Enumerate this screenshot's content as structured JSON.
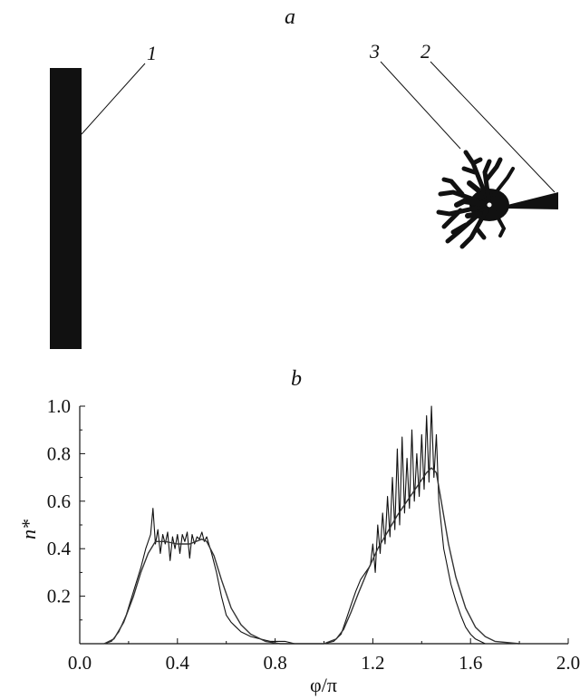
{
  "panel_a": {
    "label": "a",
    "labels": [
      "1",
      "2",
      "3"
    ]
  },
  "chart_data": {
    "type": "line",
    "title": "b",
    "xlabel": "φ/π",
    "ylabel": "n*",
    "xlim": [
      0.0,
      2.0
    ],
    "ylim": [
      0.0,
      1.0
    ],
    "x_ticks": [
      "0.0",
      "0.4",
      "0.8",
      "1.2",
      "1.6",
      "2.0"
    ],
    "y_ticks": [
      "0.2",
      "0.4",
      "0.6",
      "0.8",
      "1.0"
    ],
    "grid": false,
    "series": [
      {
        "name": "",
        "style": "noisy",
        "x": [
          0.0,
          0.1,
          0.13,
          0.16,
          0.19,
          0.22,
          0.25,
          0.27,
          0.29,
          0.3,
          0.31,
          0.32,
          0.33,
          0.34,
          0.35,
          0.36,
          0.37,
          0.38,
          0.39,
          0.4,
          0.41,
          0.42,
          0.43,
          0.44,
          0.45,
          0.46,
          0.47,
          0.48,
          0.49,
          0.5,
          0.51,
          0.52,
          0.54,
          0.56,
          0.58,
          0.6,
          0.62,
          0.64,
          0.66,
          0.68,
          0.7,
          0.72,
          0.74,
          0.76,
          0.78,
          0.8,
          0.84,
          0.88,
          0.92,
          0.96,
          1.0,
          1.04,
          1.07,
          1.09,
          1.11,
          1.13,
          1.15,
          1.17,
          1.19,
          1.2,
          1.21,
          1.22,
          1.23,
          1.24,
          1.25,
          1.26,
          1.27,
          1.28,
          1.29,
          1.3,
          1.31,
          1.32,
          1.33,
          1.34,
          1.35,
          1.36,
          1.37,
          1.38,
          1.39,
          1.4,
          1.41,
          1.42,
          1.43,
          1.44,
          1.45,
          1.46,
          1.47,
          1.48,
          1.49,
          1.5,
          1.51,
          1.52,
          1.54,
          1.56,
          1.58,
          1.6,
          1.62,
          1.64,
          1.66,
          1.7,
          1.75,
          1.8,
          1.9,
          2.0
        ],
        "y": [
          0.0,
          0.0,
          0.01,
          0.05,
          0.12,
          0.22,
          0.32,
          0.4,
          0.46,
          0.57,
          0.42,
          0.48,
          0.38,
          0.46,
          0.42,
          0.47,
          0.35,
          0.45,
          0.4,
          0.46,
          0.38,
          0.46,
          0.43,
          0.47,
          0.36,
          0.46,
          0.42,
          0.45,
          0.44,
          0.47,
          0.43,
          0.45,
          0.38,
          0.3,
          0.2,
          0.12,
          0.09,
          0.07,
          0.05,
          0.04,
          0.03,
          0.025,
          0.02,
          0.015,
          0.01,
          0.01,
          0.01,
          0.0,
          0.0,
          0.0,
          0.0,
          0.01,
          0.04,
          0.1,
          0.16,
          0.22,
          0.27,
          0.3,
          0.33,
          0.42,
          0.3,
          0.5,
          0.38,
          0.55,
          0.42,
          0.62,
          0.45,
          0.7,
          0.48,
          0.82,
          0.5,
          0.87,
          0.55,
          0.78,
          0.57,
          0.9,
          0.6,
          0.8,
          0.62,
          0.88,
          0.65,
          0.96,
          0.68,
          1.0,
          0.7,
          0.88,
          0.6,
          0.5,
          0.4,
          0.35,
          0.3,
          0.25,
          0.18,
          0.12,
          0.07,
          0.04,
          0.02,
          0.01,
          0.0,
          0.0,
          0.0,
          0.0,
          0.0,
          0.0
        ]
      },
      {
        "name": "",
        "style": "smooth",
        "x": [
          0.1,
          0.14,
          0.18,
          0.22,
          0.25,
          0.28,
          0.31,
          0.35,
          0.4,
          0.45,
          0.5,
          0.52,
          0.55,
          0.58,
          0.62,
          0.66,
          0.7,
          0.76,
          0.82,
          0.9,
          1.0,
          1.05,
          1.08,
          1.11,
          1.14,
          1.18,
          1.22,
          1.26,
          1.3,
          1.34,
          1.38,
          1.42,
          1.44,
          1.46,
          1.48,
          1.51,
          1.54,
          1.58,
          1.62,
          1.66,
          1.7,
          1.8
        ],
        "y": [
          0.0,
          0.02,
          0.09,
          0.2,
          0.3,
          0.38,
          0.43,
          0.43,
          0.42,
          0.42,
          0.44,
          0.43,
          0.37,
          0.27,
          0.15,
          0.08,
          0.04,
          0.01,
          0.0,
          0.0,
          0.0,
          0.02,
          0.06,
          0.13,
          0.21,
          0.31,
          0.4,
          0.47,
          0.54,
          0.6,
          0.66,
          0.72,
          0.74,
          0.72,
          0.6,
          0.42,
          0.28,
          0.15,
          0.07,
          0.03,
          0.01,
          0.0
        ]
      }
    ]
  }
}
